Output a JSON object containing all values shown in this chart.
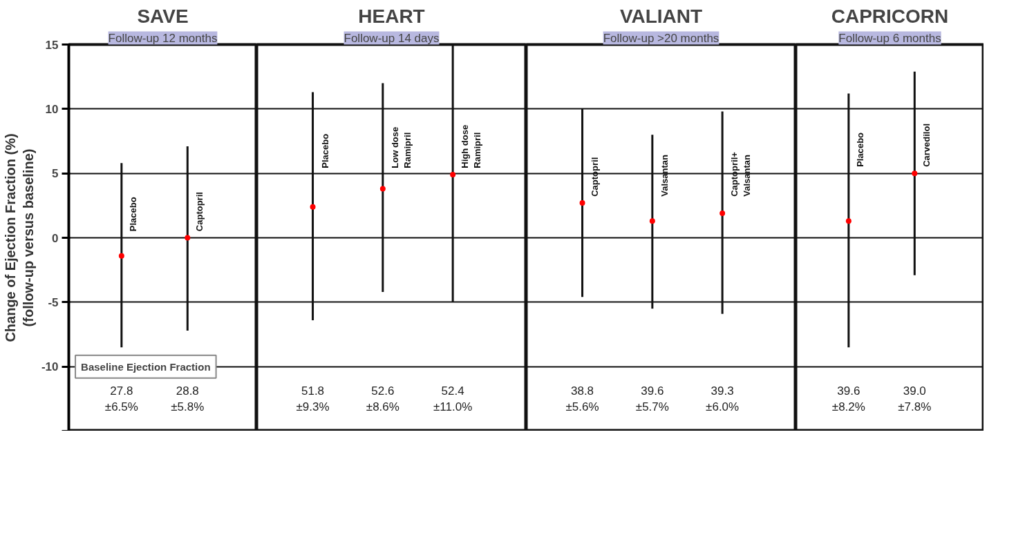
{
  "chart_data": [
    {
      "type": "scatter",
      "title": "SAVE",
      "subtitle": "Follow-up 12 months",
      "ylabel": "Change of Ejection Fraction (%)\n(follow-up versus baseline)",
      "categories": [
        "Placebo",
        "Captopril"
      ],
      "values": [
        -1.4,
        0
      ],
      "errors": [
        [
          -8.5,
          5.8
        ],
        [
          -7.2,
          7.1
        ]
      ],
      "color": "#ff0000",
      "marker": "circle",
      "ylim": [
        -15,
        15
      ],
      "yticks": [
        15,
        10,
        5,
        0,
        -5,
        -10,
        {
          "value": -15,
          "label": null
        }
      ],
      "grid": "y",
      "tick_labels": "y",
      "annotations": [
        "Baseline Ejection Fraction",
        "27.8\n±6.5%",
        "28.8\n±5.8%"
      ]
    },
    {
      "type": "scatter",
      "title": "HEART",
      "subtitle": "Follow-up 14 days",
      "categories": [
        "Placebo",
        "Low dose\nRamipril",
        "High dose\nRamipril"
      ],
      "values": [
        2.4,
        3.8,
        4.9
      ],
      "errors": [
        [
          -6.4,
          11.3
        ],
        [
          -4.2,
          12.0
        ],
        [
          -5.0,
          15
        ]
      ],
      "color": "#ff0000",
      "marker": "circle",
      "ylim": [
        -15,
        15
      ],
      "yticks": [
        15,
        10,
        5,
        0,
        -5,
        -10,
        -15
      ],
      "grid": "y",
      "tick_labels": false,
      "annotations": [
        "51.8\n±9.3%",
        "52.6\n±8.6%",
        "52.4\n±11.0%"
      ]
    },
    {
      "type": "scatter",
      "title": "VALIANT",
      "subtitle": "Follow-up >20 months",
      "categories": [
        "Captopril",
        "Valsantan",
        "Captopril+\nValsantan"
      ],
      "values": [
        2.7,
        1.3,
        1.9
      ],
      "errors": [
        [
          -4.6,
          10.0
        ],
        [
          -5.5,
          8.0
        ],
        [
          -5.9,
          9.8
        ]
      ],
      "color": "#ff0000",
      "marker": "circle",
      "ylim": [
        -15,
        15
      ],
      "yticks": [
        15,
        10,
        5,
        0,
        -5,
        -10,
        -15
      ],
      "grid": "y",
      "tick_labels": false,
      "annotations": [
        "38.8\n±5.6%",
        "39.6\n±5.7%",
        "39.3\n±6.0%"
      ]
    },
    {
      "type": "scatter",
      "title": "CAPRICORN",
      "subtitle": "Follow-up 6 months",
      "categories": [
        "Placebo",
        "Carvedilol"
      ],
      "values": [
        1.3,
        5.0
      ],
      "errors": [
        [
          -8.5,
          11.2
        ],
        [
          -2.9,
          12.9
        ]
      ],
      "color": "#ff0000",
      "marker": "circle",
      "ylim": [
        -15,
        15
      ],
      "yticks": [
        15,
        10,
        5,
        0,
        -5,
        -10,
        -15
      ],
      "grid": "y",
      "tick_labels": false,
      "annotations": [
        "39.6\n±8.2%",
        "39.0\n±7.8%"
      ]
    }
  ]
}
